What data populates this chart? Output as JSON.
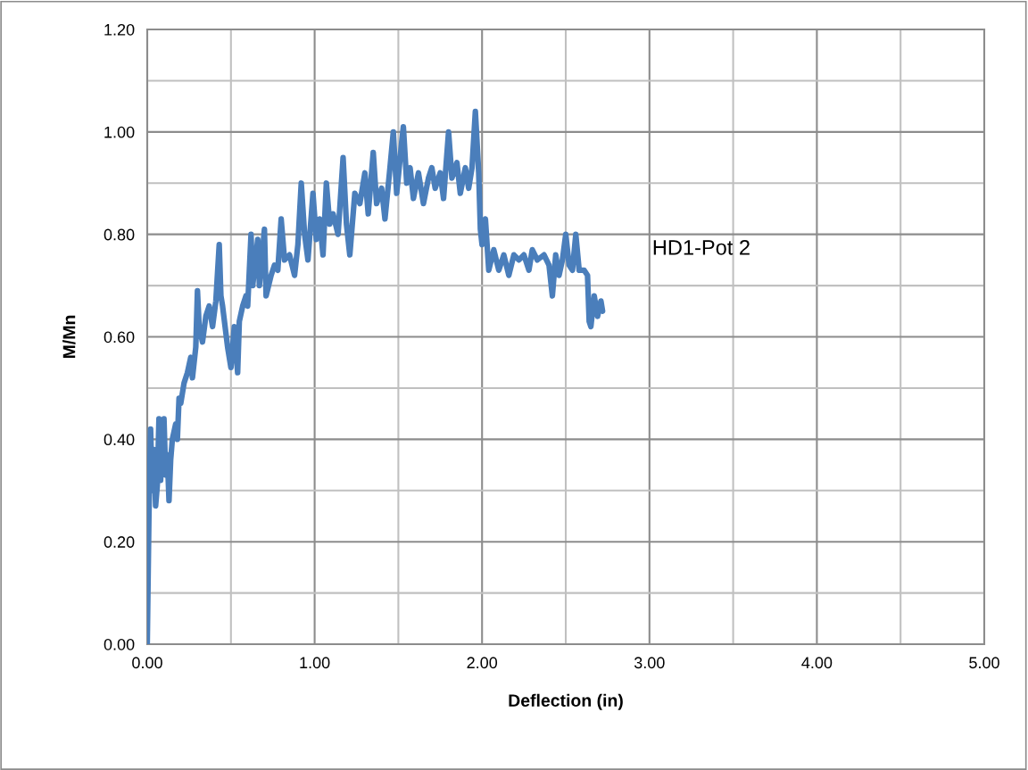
{
  "chart_data": {
    "type": "line",
    "xlabel": "Deflection (in)",
    "ylabel": "M/Mn",
    "grid": true,
    "marker": "none",
    "line_style": "solid",
    "xlim": [
      0,
      5
    ],
    "ylim": [
      0,
      1.2
    ],
    "xticks": [
      {
        "value": 0,
        "label": "0.00"
      },
      {
        "value": 0.5,
        "label": null
      },
      {
        "value": 1,
        "label": "1.00"
      },
      {
        "value": 1.5,
        "label": null
      },
      {
        "value": 2,
        "label": "2.00"
      },
      {
        "value": 2.5,
        "label": null
      },
      {
        "value": 3,
        "label": "3.00"
      },
      {
        "value": 3.5,
        "label": null
      },
      {
        "value": 4,
        "label": "4.00"
      },
      {
        "value": 4.5,
        "label": null
      },
      {
        "value": 5,
        "label": "5.00"
      }
    ],
    "yticks": [
      {
        "value": 0,
        "label": "0.00"
      },
      {
        "value": 0.1,
        "label": null
      },
      {
        "value": 0.2,
        "label": "0.20"
      },
      {
        "value": 0.3,
        "label": null
      },
      {
        "value": 0.4,
        "label": "0.40"
      },
      {
        "value": 0.5,
        "label": null
      },
      {
        "value": 0.6,
        "label": "0.60"
      },
      {
        "value": 0.7,
        "label": null
      },
      {
        "value": 0.8,
        "label": "0.80"
      },
      {
        "value": 0.9,
        "label": null
      },
      {
        "value": 1.0,
        "label": "1.00"
      },
      {
        "value": 1.1,
        "label": null
      },
      {
        "value": 1.2,
        "label": "1.20"
      }
    ],
    "series": [
      {
        "name": "HD1-Pot 2",
        "color": "#4a7ebb",
        "x": [
          0.0,
          0.01,
          0.02,
          0.03,
          0.04,
          0.05,
          0.06,
          0.07,
          0.08,
          0.1,
          0.11,
          0.12,
          0.13,
          0.14,
          0.15,
          0.17,
          0.18,
          0.19,
          0.2,
          0.22,
          0.24,
          0.26,
          0.27,
          0.29,
          0.3,
          0.31,
          0.33,
          0.35,
          0.37,
          0.39,
          0.41,
          0.43,
          0.44,
          0.45,
          0.48,
          0.5,
          0.52,
          0.54,
          0.55,
          0.57,
          0.59,
          0.6,
          0.62,
          0.63,
          0.66,
          0.67,
          0.7,
          0.71,
          0.74,
          0.76,
          0.78,
          0.8,
          0.82,
          0.85,
          0.88,
          0.9,
          0.92,
          0.94,
          0.96,
          0.99,
          1.01,
          1.03,
          1.05,
          1.07,
          1.09,
          1.11,
          1.14,
          1.17,
          1.19,
          1.21,
          1.24,
          1.27,
          1.3,
          1.32,
          1.35,
          1.37,
          1.4,
          1.42,
          1.45,
          1.47,
          1.49,
          1.52,
          1.53,
          1.55,
          1.57,
          1.59,
          1.62,
          1.65,
          1.68,
          1.7,
          1.72,
          1.75,
          1.77,
          1.8,
          1.82,
          1.85,
          1.87,
          1.9,
          1.92,
          1.94,
          1.96,
          1.98,
          1.99,
          2.0,
          2.02,
          2.04,
          2.07,
          2.1,
          2.13,
          2.16,
          2.19,
          2.22,
          2.25,
          2.28,
          2.3,
          2.33,
          2.37,
          2.4,
          2.42,
          2.44,
          2.46,
          2.48,
          2.5,
          2.52,
          2.54,
          2.56,
          2.58,
          2.61,
          2.63,
          2.64,
          2.65,
          2.67,
          2.69,
          2.71,
          2.72
        ],
        "values": [
          0.0,
          0.25,
          0.42,
          0.3,
          0.38,
          0.27,
          0.31,
          0.44,
          0.32,
          0.44,
          0.33,
          0.37,
          0.28,
          0.36,
          0.4,
          0.43,
          0.4,
          0.48,
          0.47,
          0.51,
          0.53,
          0.56,
          0.52,
          0.58,
          0.69,
          0.62,
          0.59,
          0.64,
          0.66,
          0.62,
          0.67,
          0.78,
          0.68,
          0.66,
          0.58,
          0.54,
          0.62,
          0.53,
          0.63,
          0.66,
          0.68,
          0.66,
          0.8,
          0.7,
          0.79,
          0.7,
          0.81,
          0.68,
          0.72,
          0.74,
          0.73,
          0.83,
          0.75,
          0.76,
          0.72,
          0.78,
          0.9,
          0.8,
          0.75,
          0.88,
          0.79,
          0.83,
          0.76,
          0.9,
          0.82,
          0.84,
          0.8,
          0.95,
          0.82,
          0.76,
          0.88,
          0.86,
          0.92,
          0.84,
          0.96,
          0.86,
          0.89,
          0.83,
          0.93,
          1.0,
          0.88,
          0.98,
          1.01,
          0.9,
          0.93,
          0.87,
          0.92,
          0.86,
          0.91,
          0.93,
          0.89,
          0.92,
          0.87,
          1.0,
          0.91,
          0.94,
          0.88,
          0.93,
          0.89,
          0.93,
          1.04,
          0.92,
          0.81,
          0.78,
          0.83,
          0.73,
          0.77,
          0.73,
          0.76,
          0.72,
          0.76,
          0.75,
          0.76,
          0.73,
          0.77,
          0.75,
          0.76,
          0.74,
          0.68,
          0.76,
          0.72,
          0.75,
          0.8,
          0.74,
          0.73,
          0.8,
          0.73,
          0.73,
          0.72,
          0.63,
          0.62,
          0.68,
          0.64,
          0.67,
          0.65
        ]
      }
    ]
  }
}
